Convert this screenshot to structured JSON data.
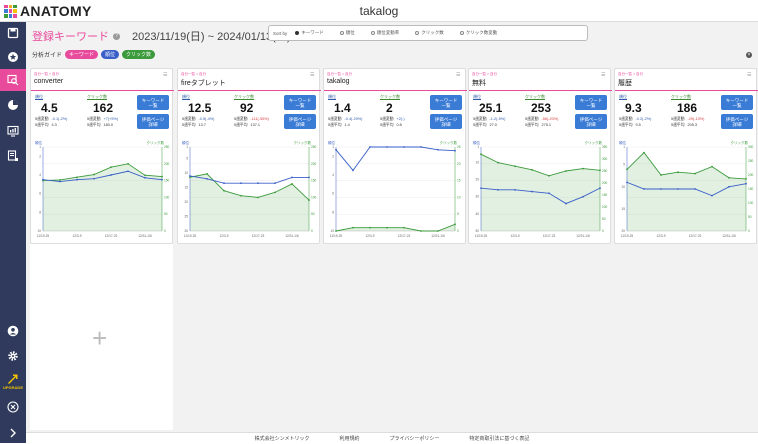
{
  "app": {
    "name": "takalog",
    "logo_text": "ANATOMY"
  },
  "header": {
    "page_title": "登録キーワード",
    "help_icon": "?",
    "date_range": "2023/11/19(日) ~ 2024/01/13(土)"
  },
  "sort": {
    "label": "Sort by",
    "options": [
      {
        "label": "キーワード",
        "selected": true
      },
      {
        "label": "順位",
        "selected": false
      },
      {
        "label": "順位変動率",
        "selected": false
      },
      {
        "label": "クリック数",
        "selected": false
      },
      {
        "label": "クリック数変動",
        "selected": false
      }
    ]
  },
  "guide": {
    "label": "分析ガイド",
    "tags": [
      {
        "label": "キーワード",
        "color": "#e94b9c"
      },
      {
        "label": "順位",
        "color": "#3a5fc8"
      },
      {
        "label": "クリック数",
        "color": "#3b9a3b"
      }
    ],
    "close_icon": "×"
  },
  "card_labels": {
    "breadcrumb": "自分一覧 > 自分",
    "rank_label": "順位",
    "click_label": "クリック数",
    "change_label": "5週変動",
    "avg_label": "5週平均",
    "kw_button": [
      "キーワード",
      "一覧"
    ],
    "eval_button": [
      "評価ページ",
      "詳細"
    ]
  },
  "cards": [
    {
      "keyword": "converter",
      "rank": "4.5",
      "rank_change": "-0.1(-2%)",
      "rank_avg": "4.3",
      "clicks": "162",
      "click_change": "+7(+5%)",
      "click_avg": "180.0"
    },
    {
      "keyword": "fireタブレット",
      "rank": "12.5",
      "rank_change": "-0.5(-4%)",
      "rank_avg": "13.7",
      "clicks": "92",
      "click_change": "-111(-55%)",
      "click_avg": "137.1"
    },
    {
      "keyword": "takalog",
      "rank": "1.4",
      "rank_change": "-0.4(-20%)",
      "rank_avg": "1.4",
      "clicks": "2",
      "click_change": "+2(-)",
      "click_avg": "0.8"
    },
    {
      "keyword": "無料",
      "rank": "25.1",
      "rank_change": "-1.2(-5%)",
      "rank_avg": "27.0",
      "clicks": "253",
      "click_change": "-56(-20%)",
      "click_avg": "275.1"
    },
    {
      "keyword": "履歴",
      "rank": "9.3",
      "rank_change": "-0.2(-2%)",
      "rank_avg": "9.5",
      "clicks": "186",
      "click_change": "-29(-13%)",
      "click_avg": "205.3"
    }
  ],
  "chart_labels": {
    "left_axis": "順位",
    "right_axis": "クリック数",
    "x_ticks": [
      "11/19-25",
      "12/3-9",
      "12/17-23",
      "12/31-1/6"
    ]
  },
  "chart_data": [
    {
      "type": "line",
      "title": "converter",
      "x": [
        "11/19-25",
        "11/26-12/2",
        "12/3-9",
        "12/10-16",
        "12/17-23",
        "12/24-30",
        "12/31-1/6",
        "1/7-13"
      ],
      "rank_ylim": [
        1,
        10
      ],
      "rank_ticks": [
        1,
        2,
        4,
        6,
        8,
        10
      ],
      "click_ylim": [
        0,
        250
      ],
      "click_ticks": [
        0,
        50,
        100,
        150,
        200,
        250
      ],
      "series": [
        {
          "name": "順位",
          "values": [
            4.5,
            4.7,
            4.5,
            4.4,
            4.0,
            3.6,
            4.3,
            4.5
          ]
        },
        {
          "name": "クリック数",
          "values": [
            150,
            152,
            160,
            168,
            190,
            200,
            166,
            162
          ]
        }
      ]
    },
    {
      "type": "line",
      "title": "fireタブレット",
      "x": [
        "11/19-25",
        "11/26-12/2",
        "12/3-9",
        "12/10-16",
        "12/17-23",
        "12/24-30",
        "12/31-1/6",
        "1/7-13"
      ],
      "rank_ylim": [
        1,
        30
      ],
      "rank_ticks": [
        1,
        5,
        10,
        15,
        20,
        25,
        30
      ],
      "click_ylim": [
        0,
        250
      ],
      "click_ticks": [
        0,
        50,
        100,
        150,
        200,
        250
      ],
      "series": [
        {
          "name": "順位",
          "values": [
            11,
            12,
            13.5,
            13.5,
            13.5,
            13.5,
            11.5,
            11.5
          ]
        },
        {
          "name": "クリック数",
          "values": [
            160,
            170,
            120,
            105,
            100,
            115,
            140,
            92
          ]
        }
      ]
    },
    {
      "type": "line",
      "title": "takalog",
      "x": [
        "11/19-25",
        "11/26-12/2",
        "12/3-9",
        "12/10-16",
        "12/17-23",
        "12/24-30",
        "12/31-1/6",
        "1/7-13"
      ],
      "rank_ylim": [
        1,
        10
      ],
      "rank_ticks": [
        1,
        2,
        4,
        6,
        8,
        10
      ],
      "click_ylim": [
        0,
        25
      ],
      "click_ticks": [
        0,
        5,
        10,
        15,
        20,
        25
      ],
      "series": [
        {
          "name": "順位",
          "values": [
            1.3,
            3.5,
            1.0,
            1.0,
            1.0,
            1.0,
            1.3,
            1.4
          ]
        },
        {
          "name": "クリック数",
          "values": [
            0,
            1,
            1,
            1,
            1,
            0,
            0,
            2
          ]
        }
      ]
    },
    {
      "type": "line",
      "title": "無料",
      "x": [
        "11/19-25",
        "11/26-12/2",
        "12/3-9",
        "12/10-16",
        "12/17-23",
        "12/24-30",
        "12/31-1/6",
        "1/7-13"
      ],
      "rank_ylim": [
        1,
        50
      ],
      "rank_ticks": [
        1,
        10,
        20,
        30,
        40,
        50
      ],
      "click_ylim": [
        0,
        350
      ],
      "click_ticks": [
        0,
        50,
        100,
        150,
        200,
        250,
        300,
        350
      ],
      "series": [
        {
          "name": "順位",
          "values": [
            25,
            26,
            26,
            27,
            28,
            34,
            30,
            25
          ]
        },
        {
          "name": "クリック数",
          "values": [
            320,
            285,
            270,
            255,
            230,
            250,
            260,
            253
          ]
        }
      ]
    },
    {
      "type": "line",
      "title": "履歴",
      "x": [
        "11/19-25",
        "11/26-12/2",
        "12/3-9",
        "12/10-16",
        "12/17-23",
        "12/24-30",
        "12/31-1/6",
        "1/7-13"
      ],
      "rank_ylim": [
        1,
        20
      ],
      "rank_ticks": [
        1,
        5,
        10,
        15,
        20
      ],
      "click_ylim": [
        0,
        300
      ],
      "click_ticks": [
        0,
        50,
        100,
        150,
        200,
        250,
        300
      ],
      "series": [
        {
          "name": "順位",
          "values": [
            9,
            10.5,
            10.5,
            10.5,
            10.5,
            12,
            10,
            9.3
          ]
        },
        {
          "name": "クリック数",
          "values": [
            220,
            280,
            200,
            210,
            205,
            230,
            190,
            186
          ]
        }
      ]
    }
  ],
  "empty_card": {
    "add_icon": "+"
  },
  "footer": {
    "links": [
      "株式会社シンメトリック",
      "利用規約",
      "プライバシーポリシー",
      "特定商取引法に基づく表記"
    ]
  },
  "sidebar": {
    "upgrade_label": "UPGRADE"
  },
  "colors": {
    "accent": "#e94b9c",
    "sidebar": "#2f3a5c",
    "rank_line": "#3a5fc8",
    "click_line": "#3b9a3b",
    "button": "#3a7bd5"
  }
}
